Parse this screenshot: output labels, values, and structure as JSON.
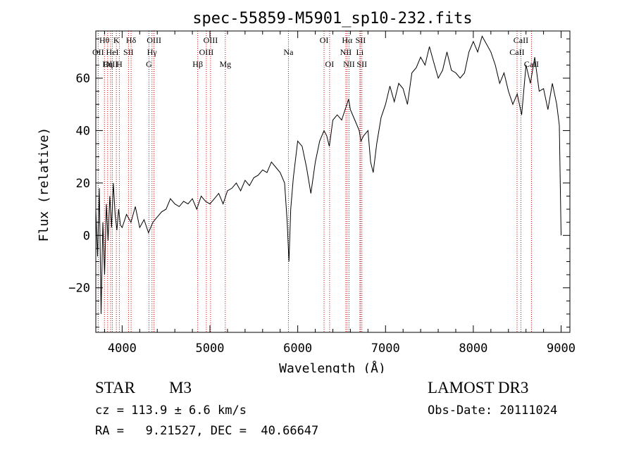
{
  "chart_data": {
    "type": "line",
    "title": "spec-55859-M5901_sp10-232.fits",
    "xlabel": "Wavelength (Å)",
    "ylabel": "Flux (relative)",
    "xlim": [
      3700,
      9100
    ],
    "ylim": [
      -37,
      78
    ],
    "xticks": [
      4000,
      5000,
      6000,
      7000,
      8000,
      9000
    ],
    "yticks": [
      -20,
      0,
      20,
      40,
      60
    ],
    "series": [
      {
        "name": "flux",
        "x": [
          3700,
          3720,
          3740,
          3760,
          3780,
          3800,
          3820,
          3840,
          3860,
          3880,
          3900,
          3920,
          3940,
          3960,
          3980,
          4000,
          4050,
          4100,
          4150,
          4200,
          4250,
          4300,
          4350,
          4400,
          4450,
          4500,
          4550,
          4600,
          4650,
          4700,
          4750,
          4800,
          4850,
          4900,
          4950,
          5000,
          5050,
          5100,
          5150,
          5200,
          5250,
          5300,
          5350,
          5400,
          5450,
          5500,
          5550,
          5600,
          5650,
          5700,
          5750,
          5800,
          5850,
          5880,
          5900,
          5920,
          5950,
          6000,
          6050,
          6100,
          6150,
          6200,
          6250,
          6300,
          6330,
          6360,
          6400,
          6450,
          6500,
          6550,
          6580,
          6600,
          6650,
          6700,
          6720,
          6750,
          6800,
          6830,
          6860,
          6900,
          6950,
          7000,
          7050,
          7100,
          7150,
          7200,
          7250,
          7300,
          7350,
          7400,
          7450,
          7500,
          7550,
          7600,
          7650,
          7700,
          7750,
          7800,
          7850,
          7900,
          7950,
          8000,
          8050,
          8100,
          8150,
          8200,
          8250,
          8300,
          8350,
          8400,
          8450,
          8500,
          8550,
          8600,
          8650,
          8700,
          8750,
          8800,
          8850,
          8900,
          8950,
          8980,
          9000
        ],
        "y": [
          10,
          -8,
          18,
          -30,
          5,
          -15,
          12,
          -2,
          15,
          3,
          20,
          8,
          2,
          10,
          4,
          3,
          8,
          5,
          11,
          3,
          6,
          1,
          5,
          7,
          9,
          10,
          14,
          12,
          11,
          13,
          12,
          14,
          10,
          15,
          13,
          12,
          14,
          16,
          12,
          17,
          18,
          20,
          17,
          21,
          19,
          22,
          23,
          25,
          24,
          28,
          26,
          24,
          20,
          5,
          -10,
          10,
          22,
          36,
          34,
          26,
          16,
          28,
          36,
          40,
          38,
          34,
          44,
          46,
          44,
          49,
          52,
          48,
          44,
          40,
          36,
          38,
          40,
          28,
          24,
          35,
          45,
          50,
          57,
          51,
          58,
          56,
          50,
          62,
          64,
          68,
          65,
          72,
          66,
          60,
          63,
          70,
          63,
          62,
          60,
          62,
          70,
          74,
          70,
          76,
          73,
          70,
          65,
          58,
          62,
          55,
          50,
          54,
          46,
          65,
          58,
          68,
          55,
          56,
          48,
          58,
          50,
          42,
          0
        ]
      }
    ],
    "lines": [
      {
        "name": "Hθ",
        "wl": 3798,
        "row": 1
      },
      {
        "name": "OII",
        "wl": 3727,
        "row": 2
      },
      {
        "name": "OIII",
        "wl": 3869,
        "row": 3
      },
      {
        "name": "K",
        "wl": 3934,
        "row": 1
      },
      {
        "name": "HeI",
        "wl": 3889,
        "row": 2
      },
      {
        "name": "Hη",
        "wl": 3835,
        "row": 3
      },
      {
        "name": "SII",
        "wl": 4072,
        "row": 2
      },
      {
        "name": "H",
        "wl": 3968,
        "row": 3
      },
      {
        "name": "Hδ",
        "wl": 4102,
        "row": 1
      },
      {
        "name": "OIII",
        "wl": 4363,
        "row": 1
      },
      {
        "name": "Hγ",
        "wl": 4340,
        "row": 2
      },
      {
        "name": "G",
        "wl": 4305,
        "row": 3
      },
      {
        "name": "Hβ",
        "wl": 4861,
        "row": 3
      },
      {
        "name": "OIII",
        "wl": 5007,
        "row": 1
      },
      {
        "name": "OIII",
        "wl": 4959,
        "row": 2
      },
      {
        "name": "Mg",
        "wl": 5175,
        "row": 3
      },
      {
        "name": "Na",
        "wl": 5894,
        "row": 2
      },
      {
        "name": "OI",
        "wl": 6300,
        "row": 1
      },
      {
        "name": "OI",
        "wl": 6363,
        "row": 3
      },
      {
        "name": "Hα",
        "wl": 6563,
        "row": 1
      },
      {
        "name": "SII",
        "wl": 6716,
        "row": 1
      },
      {
        "name": "NII",
        "wl": 6548,
        "row": 2
      },
      {
        "name": "Li",
        "wl": 6708,
        "row": 2
      },
      {
        "name": "NII",
        "wl": 6584,
        "row": 3
      },
      {
        "name": "SII",
        "wl": 6731,
        "row": 3
      },
      {
        "name": "CaII",
        "wl": 8542,
        "row": 1
      },
      {
        "name": "CaII",
        "wl": 8498,
        "row": 2
      },
      {
        "name": "CaII",
        "wl": 8662,
        "row": 3
      }
    ]
  },
  "info": {
    "object_class": "STAR",
    "subclass": "M3",
    "survey": "LAMOST DR3",
    "cz": "cz = 113.9 ± 6.6 km/s",
    "obs_date": "Obs-Date: 20111024",
    "radec": "RA =   9.21527, DEC =  40.66647"
  },
  "colors": {
    "line": "#000000",
    "marker": "#cc0000",
    "background": "#ffffff"
  }
}
